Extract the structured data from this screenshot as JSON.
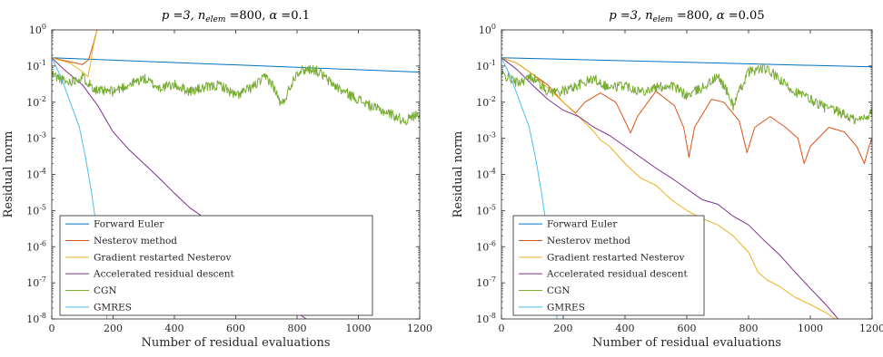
{
  "chart_data": [
    {
      "type": "line",
      "title": {
        "p": "p =3, ",
        "n_sym": "n",
        "n_sub": "elem",
        "n_val": " =800, ",
        "alpha_sym": "α",
        "alpha_val": " =0.1"
      },
      "xlabel": "Number of residual evaluations",
      "ylabel": "Residual norm",
      "xlim": [
        0,
        1200
      ],
      "ylim": [
        1e-08,
        1
      ],
      "yscale": "log",
      "xticks": [
        0,
        200,
        400,
        600,
        800,
        1000,
        1200
      ],
      "yticks": [
        {
          "exp": -8,
          "base": "10",
          "sup": "-8"
        },
        {
          "exp": -7,
          "base": "10",
          "sup": "-7"
        },
        {
          "exp": -6,
          "base": "10",
          "sup": "-6"
        },
        {
          "exp": -5,
          "base": "10",
          "sup": "-5"
        },
        {
          "exp": -4,
          "base": "10",
          "sup": "-4"
        },
        {
          "exp": -3,
          "base": "10",
          "sup": "-3"
        },
        {
          "exp": -2,
          "base": "10",
          "sup": "-2"
        },
        {
          "exp": -1,
          "base": "10",
          "sup": "-1"
        },
        {
          "exp": 0,
          "base": "10",
          "sup": "0"
        }
      ],
      "legend_position": "lower-left",
      "series": [
        {
          "name": "Forward Euler",
          "color": "#0072BD",
          "points": [
            [
              0,
              0.17
            ],
            [
              1200,
              0.068
            ]
          ]
        },
        {
          "name": "Nesterov method",
          "color": "#D95319",
          "points": [
            [
              0,
              0.17
            ],
            [
              60,
              0.13
            ],
            [
              100,
              0.11
            ],
            [
              120,
              0.15
            ],
            [
              135,
              0.4
            ],
            [
              150,
              1.2
            ]
          ]
        },
        {
          "name": "Gradient restarted Nesterov",
          "color": "#EDB120",
          "points": [
            [
              0,
              0.17
            ],
            [
              60,
              0.12
            ],
            [
              100,
              0.07
            ],
            [
              118,
              0.05
            ],
            [
              125,
              0.1
            ],
            [
              135,
              0.35
            ],
            [
              150,
              1.2
            ]
          ]
        },
        {
          "name": "Accelerated residual descent",
          "color": "#7E2F8E",
          "points": [
            [
              0,
              0.17
            ],
            [
              40,
              0.08
            ],
            [
              100,
              0.03
            ],
            [
              150,
              0.008
            ],
            [
              200,
              0.0015
            ],
            [
              250,
              0.0005
            ],
            [
              300,
              0.0002
            ],
            [
              350,
              8e-05
            ],
            [
              400,
              3e-05
            ],
            [
              450,
              1.2e-05
            ],
            [
              500,
              6e-06
            ],
            [
              550,
              3e-06
            ],
            [
              600,
              1.5e-06
            ],
            [
              650,
              6e-07
            ],
            [
              700,
              2e-07
            ],
            [
              750,
              6e-08
            ],
            [
              800,
              1.5e-08
            ],
            [
              830,
              1e-08
            ]
          ]
        },
        {
          "name": "CGN",
          "color": "#77AC30",
          "noisy": true,
          "points": [
            [
              0,
              0.06
            ],
            [
              50,
              0.035
            ],
            [
              100,
              0.05
            ],
            [
              150,
              0.02
            ],
            [
              200,
              0.02
            ],
            [
              250,
              0.03
            ],
            [
              300,
              0.045
            ],
            [
              350,
              0.025
            ],
            [
              400,
              0.03
            ],
            [
              450,
              0.02
            ],
            [
              500,
              0.025
            ],
            [
              550,
              0.03
            ],
            [
              600,
              0.015
            ],
            [
              650,
              0.025
            ],
            [
              700,
              0.05
            ],
            [
              720,
              0.03
            ],
            [
              750,
              0.008
            ],
            [
              780,
              0.03
            ],
            [
              800,
              0.07
            ],
            [
              830,
              0.08
            ],
            [
              850,
              0.085
            ],
            [
              880,
              0.06
            ],
            [
              900,
              0.04
            ],
            [
              950,
              0.02
            ],
            [
              1000,
              0.012
            ],
            [
              1050,
              0.007
            ],
            [
              1100,
              0.005
            ],
            [
              1150,
              0.003
            ],
            [
              1200,
              0.005
            ]
          ]
        },
        {
          "name": "GMRES",
          "color": "#4DBEEE",
          "points": [
            [
              0,
              0.17
            ],
            [
              30,
              0.05
            ],
            [
              60,
              0.01
            ],
            [
              90,
              0.002
            ],
            [
              110,
              0.0003
            ],
            [
              130,
              3e-05
            ],
            [
              150,
              2e-06
            ],
            [
              165,
              3e-07
            ],
            [
              180,
              1e-08
            ]
          ]
        }
      ]
    },
    {
      "type": "line",
      "title": {
        "p": "p =3, ",
        "n_sym": "n",
        "n_sub": "elem",
        "n_val": " =800, ",
        "alpha_sym": "α",
        "alpha_val": " =0.05"
      },
      "xlabel": "Number of residual evaluations",
      "ylabel": "Residual norm",
      "xlim": [
        0,
        1200
      ],
      "ylim": [
        1e-08,
        1
      ],
      "yscale": "log",
      "xticks": [
        0,
        200,
        400,
        600,
        800,
        1000,
        1200
      ],
      "yticks": [
        {
          "exp": -8,
          "base": "10",
          "sup": "-8"
        },
        {
          "exp": -7,
          "base": "10",
          "sup": "-7"
        },
        {
          "exp": -6,
          "base": "10",
          "sup": "-6"
        },
        {
          "exp": -5,
          "base": "10",
          "sup": "-5"
        },
        {
          "exp": -4,
          "base": "10",
          "sup": "-4"
        },
        {
          "exp": -3,
          "base": "10",
          "sup": "-3"
        },
        {
          "exp": -2,
          "base": "10",
          "sup": "-2"
        },
        {
          "exp": -1,
          "base": "10",
          "sup": "-1"
        },
        {
          "exp": 0,
          "base": "10",
          "sup": "0"
        }
      ],
      "legend_position": "lower-left",
      "series": [
        {
          "name": "Forward Euler",
          "color": "#0072BD",
          "points": [
            [
              0,
              0.17
            ],
            [
              1200,
              0.095
            ]
          ]
        },
        {
          "name": "Nesterov method",
          "color": "#D95319",
          "points": [
            [
              0,
              0.17
            ],
            [
              50,
              0.12
            ],
            [
              100,
              0.06
            ],
            [
              150,
              0.03
            ],
            [
              200,
              0.01
            ],
            [
              240,
              0.005
            ],
            [
              270,
              0.01
            ],
            [
              320,
              0.018
            ],
            [
              370,
              0.01
            ],
            [
              400,
              0.003
            ],
            [
              418,
              0.0014
            ],
            [
              440,
              0.004
            ],
            [
              500,
              0.02
            ],
            [
              560,
              0.008
            ],
            [
              590,
              0.002
            ],
            [
              607,
              0.0003
            ],
            [
              625,
              0.002
            ],
            [
              680,
              0.012
            ],
            [
              720,
              0.01
            ],
            [
              770,
              0.003
            ],
            [
              795,
              0.0004
            ],
            [
              820,
              0.002
            ],
            [
              870,
              0.004
            ],
            [
              920,
              0.002
            ],
            [
              960,
              0.001
            ],
            [
              980,
              0.0002
            ],
            [
              1000,
              0.0006
            ],
            [
              1060,
              0.002
            ],
            [
              1110,
              0.0015
            ],
            [
              1150,
              0.0006
            ],
            [
              1175,
              0.0002
            ],
            [
              1190,
              0.0006
            ],
            [
              1200,
              0.001
            ]
          ]
        },
        {
          "name": "Gradient restarted Nesterov",
          "color": "#EDB120",
          "points": [
            [
              0,
              0.17
            ],
            [
              50,
              0.12
            ],
            [
              100,
              0.06
            ],
            [
              150,
              0.025
            ],
            [
              200,
              0.01
            ],
            [
              250,
              0.004
            ],
            [
              300,
              0.0015
            ],
            [
              320,
              0.0009
            ],
            [
              350,
              0.0006
            ],
            [
              400,
              0.0002
            ],
            [
              450,
              8e-05
            ],
            [
              500,
              5e-05
            ],
            [
              550,
              2e-05
            ],
            [
              600,
              1e-05
            ],
            [
              650,
              6e-06
            ],
            [
              700,
              4e-06
            ],
            [
              750,
              2e-06
            ],
            [
              800,
              7e-07
            ],
            [
              830,
              2e-07
            ],
            [
              860,
              1.2e-07
            ],
            [
              900,
              8e-08
            ],
            [
              950,
              4e-08
            ],
            [
              1000,
              2.5e-08
            ],
            [
              1050,
              1.5e-08
            ],
            [
              1080,
              1e-08
            ]
          ]
        },
        {
          "name": "Accelerated residual descent",
          "color": "#7E2F8E",
          "points": [
            [
              0,
              0.17
            ],
            [
              50,
              0.08
            ],
            [
              100,
              0.03
            ],
            [
              150,
              0.012
            ],
            [
              200,
              0.006
            ],
            [
              250,
              0.004
            ],
            [
              300,
              0.002
            ],
            [
              350,
              0.0012
            ],
            [
              400,
              0.0006
            ],
            [
              450,
              0.0003
            ],
            [
              500,
              0.00015
            ],
            [
              550,
              8e-05
            ],
            [
              600,
              4e-05
            ],
            [
              650,
              2e-05
            ],
            [
              700,
              1.5e-05
            ],
            [
              750,
              7e-06
            ],
            [
              800,
              4e-06
            ],
            [
              850,
              1.5e-06
            ],
            [
              900,
              6e-07
            ],
            [
              950,
              2e-07
            ],
            [
              1000,
              7e-08
            ],
            [
              1050,
              2.5e-08
            ],
            [
              1090,
              1e-08
            ]
          ]
        },
        {
          "name": "CGN",
          "color": "#77AC30",
          "noisy": true,
          "points": [
            [
              0,
              0.06
            ],
            [
              50,
              0.035
            ],
            [
              100,
              0.05
            ],
            [
              150,
              0.02
            ],
            [
              200,
              0.02
            ],
            [
              250,
              0.03
            ],
            [
              300,
              0.045
            ],
            [
              350,
              0.025
            ],
            [
              400,
              0.03
            ],
            [
              450,
              0.02
            ],
            [
              500,
              0.025
            ],
            [
              550,
              0.03
            ],
            [
              600,
              0.015
            ],
            [
              650,
              0.025
            ],
            [
              700,
              0.05
            ],
            [
              720,
              0.03
            ],
            [
              750,
              0.008
            ],
            [
              780,
              0.03
            ],
            [
              800,
              0.07
            ],
            [
              830,
              0.08
            ],
            [
              850,
              0.085
            ],
            [
              880,
              0.06
            ],
            [
              900,
              0.04
            ],
            [
              950,
              0.02
            ],
            [
              1000,
              0.012
            ],
            [
              1050,
              0.007
            ],
            [
              1100,
              0.005
            ],
            [
              1150,
              0.003
            ],
            [
              1200,
              0.005
            ]
          ]
        },
        {
          "name": "GMRES",
          "color": "#4DBEEE",
          "points": [
            [
              0,
              0.17
            ],
            [
              30,
              0.05
            ],
            [
              60,
              0.01
            ],
            [
              90,
              0.002
            ],
            [
              110,
              0.0003
            ],
            [
              130,
              3e-05
            ],
            [
              150,
              2e-06
            ],
            [
              165,
              3e-07
            ],
            [
              180,
              1e-08
            ]
          ]
        }
      ]
    }
  ]
}
